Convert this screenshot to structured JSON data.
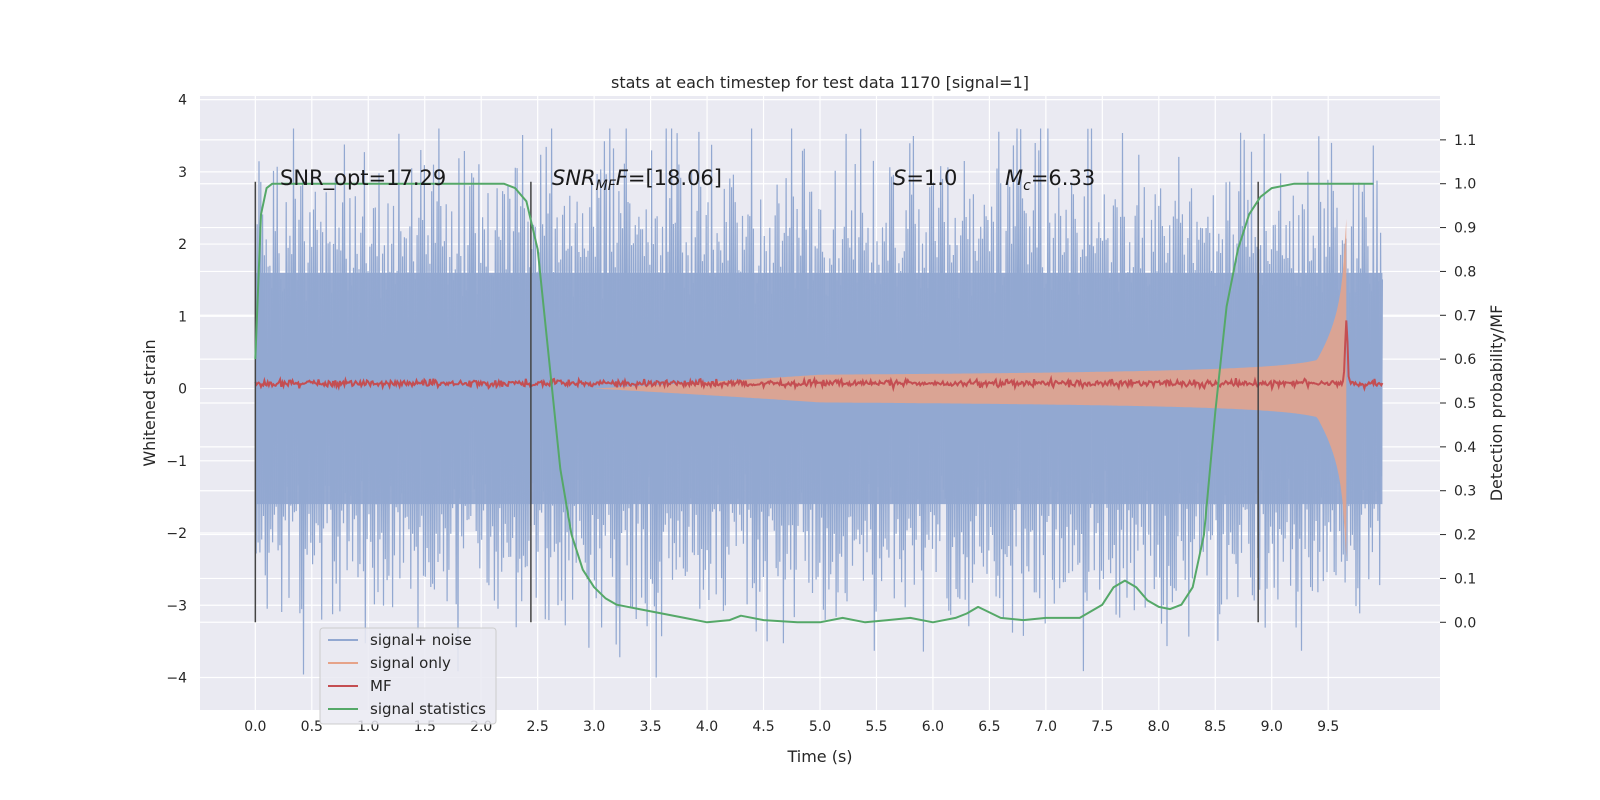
{
  "chart_data": {
    "type": "line",
    "title": "stats at each timestep for test data 1170 [signal=1]",
    "xlabel": "Time (s)",
    "ylabel": "Whitened strain",
    "y2label": "Detection probability/MF",
    "xlim": [
      -0.49,
      10.49
    ],
    "ylim": [
      -4.45,
      4.05
    ],
    "y2lim": [
      -0.2,
      1.2
    ],
    "xticks": [
      "0.0",
      "0.5",
      "1.0",
      "1.5",
      "2.0",
      "2.5",
      "3.0",
      "3.5",
      "4.0",
      "4.5",
      "5.0",
      "5.5",
      "6.0",
      "6.5",
      "7.0",
      "7.5",
      "8.0",
      "8.5",
      "9.0",
      "9.5"
    ],
    "yticks": [
      "4",
      "3",
      "2",
      "1",
      "0",
      "−1",
      "−2",
      "−3",
      "−4"
    ],
    "y2ticks": [
      "1.1",
      "1.0",
      "0.9",
      "0.8",
      "0.7",
      "0.6",
      "0.5",
      "0.4",
      "0.3",
      "0.2",
      "0.1",
      "0.0"
    ],
    "grid": true,
    "legend_position": "lower-left",
    "annotations": {
      "snr_opt": "SNR_opt=17.29",
      "snr_mf": "[18.06]",
      "snr_mf_lhs": "SNR",
      "snr_mf_sub": "MF",
      "snr_mf_rhs": "=",
      "s_stat": "S",
      "s_stat_rhs": "=1.0",
      "mc": "M",
      "mc_sub": "c",
      "mc_rhs": "=6.33"
    },
    "vlines": [
      0.0,
      2.44,
      8.88
    ],
    "series": [
      {
        "name": "signal+ noise",
        "color": "#92a8d1",
        "kind": "noise",
        "x_range": [
          0.0,
          9.98
        ],
        "envelope": 1.6,
        "extreme": 3.6
      },
      {
        "name": "signal only",
        "color": "#e6a389",
        "kind": "chirp",
        "x_range": [
          0.0,
          9.66
        ]
      },
      {
        "name": "MF",
        "color": "#c44e52",
        "kind": "mf",
        "x_range": [
          0.0,
          9.98
        ],
        "baseline": 0.07,
        "peak_x": 9.66,
        "peak_y": 0.95
      },
      {
        "name": "signal statistics",
        "color": "#55a868",
        "kind": "prob",
        "x": [
          0.0,
          0.05,
          0.1,
          0.15,
          0.3,
          0.6,
          1.0,
          1.5,
          2.0,
          2.2,
          2.3,
          2.4,
          2.5,
          2.6,
          2.7,
          2.8,
          2.9,
          3.0,
          3.1,
          3.2,
          3.4,
          3.6,
          3.8,
          4.0,
          4.2,
          4.3,
          4.5,
          4.8,
          5.0,
          5.2,
          5.4,
          5.6,
          5.8,
          6.0,
          6.2,
          6.3,
          6.4,
          6.6,
          6.8,
          7.0,
          7.3,
          7.5,
          7.6,
          7.7,
          7.8,
          7.9,
          8.0,
          8.1,
          8.2,
          8.3,
          8.4,
          8.5,
          8.6,
          8.7,
          8.8,
          8.9,
          9.0,
          9.2,
          9.4,
          9.6,
          9.8,
          9.9
        ],
        "y": [
          0.6,
          0.93,
          0.99,
          1.0,
          1.0,
          1.0,
          1.0,
          1.0,
          1.0,
          1.0,
          0.99,
          0.96,
          0.85,
          0.6,
          0.35,
          0.2,
          0.12,
          0.08,
          0.055,
          0.04,
          0.03,
          0.02,
          0.01,
          0.0,
          0.005,
          0.015,
          0.005,
          0.0,
          0.0,
          0.01,
          0.0,
          0.005,
          0.01,
          0.0,
          0.01,
          0.02,
          0.035,
          0.01,
          0.005,
          0.01,
          0.01,
          0.04,
          0.08,
          0.095,
          0.08,
          0.05,
          0.035,
          0.03,
          0.04,
          0.08,
          0.2,
          0.48,
          0.72,
          0.85,
          0.93,
          0.97,
          0.99,
          1.0,
          1.0,
          1.0,
          1.0,
          1.0
        ]
      }
    ]
  }
}
